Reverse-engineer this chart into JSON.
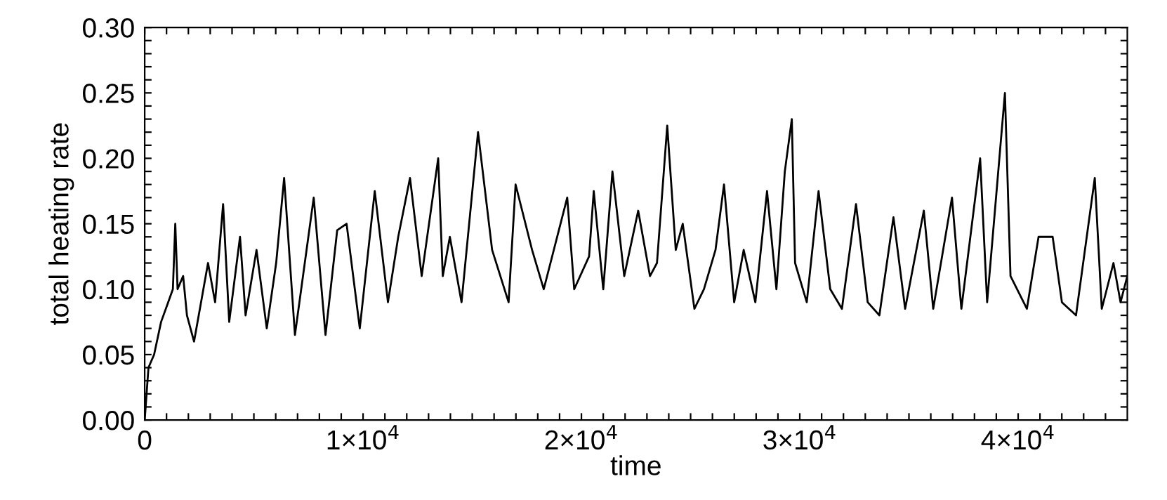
{
  "chart_data": {
    "type": "line",
    "xlabel": "time",
    "ylabel": "total heating rate",
    "series": [
      {
        "color": "#000000",
        "x": [
          0,
          172,
          430,
          750,
          1075,
          1290,
          1400,
          1505,
          1760,
          1935,
          2260,
          2580,
          2900,
          3225,
          3590,
          3870,
          4365,
          4620,
          5120,
          5590,
          6020,
          6385,
          6880,
          7740,
          8280,
          8815,
          9245,
          9850,
          10535,
          11140,
          11610,
          12150,
          12685,
          13440,
          13650,
          13975,
          14510,
          15265,
          15910,
          16665,
          16985,
          17740,
          18275,
          19350,
          19670,
          20350,
          20565,
          21000,
          21420,
          21960,
          22600,
          23140,
          23460,
          23930,
          24320,
          24640,
          25175,
          25610,
          26140,
          26530,
          26995,
          27430,
          27965,
          28500,
          28930,
          29315,
          29635,
          29785,
          30320,
          30860,
          31395,
          31930,
          32575,
          33110,
          33645,
          34290,
          34825,
          35680,
          36110,
          36970,
          37400,
          38260,
          38580,
          39395,
          39650,
          40400,
          40935,
          41580,
          42005,
          42650,
          43510,
          43830,
          44365,
          44690,
          45000
        ],
        "values": [
          0.0,
          0.04,
          0.05,
          0.075,
          0.09,
          0.1,
          0.15,
          0.1,
          0.11,
          0.08,
          0.06,
          0.09,
          0.12,
          0.09,
          0.165,
          0.075,
          0.14,
          0.08,
          0.13,
          0.07,
          0.12,
          0.185,
          0.065,
          0.17,
          0.065,
          0.145,
          0.15,
          0.07,
          0.175,
          0.09,
          0.14,
          0.185,
          0.11,
          0.2,
          0.11,
          0.14,
          0.09,
          0.22,
          0.13,
          0.09,
          0.18,
          0.13,
          0.1,
          0.17,
          0.1,
          0.125,
          0.175,
          0.1,
          0.19,
          0.11,
          0.16,
          0.11,
          0.12,
          0.225,
          0.13,
          0.15,
          0.085,
          0.1,
          0.13,
          0.18,
          0.09,
          0.13,
          0.09,
          0.175,
          0.1,
          0.19,
          0.23,
          0.12,
          0.09,
          0.175,
          0.1,
          0.085,
          0.165,
          0.09,
          0.08,
          0.155,
          0.085,
          0.16,
          0.085,
          0.17,
          0.085,
          0.2,
          0.09,
          0.25,
          0.11,
          0.085,
          0.14,
          0.14,
          0.09,
          0.08,
          0.185,
          0.085,
          0.12,
          0.09,
          0.11
        ]
      }
    ],
    "xlim": [
      0,
      45000
    ],
    "xticks": [
      {
        "value": 0,
        "label": "0"
      },
      {
        "value": 1000,
        "label": null
      },
      {
        "value": 2000,
        "label": null
      },
      {
        "value": 3000,
        "label": null
      },
      {
        "value": 4000,
        "label": null
      },
      {
        "value": 5000,
        "label": null
      },
      {
        "value": 6000,
        "label": null
      },
      {
        "value": 7000,
        "label": null
      },
      {
        "value": 8000,
        "label": null
      },
      {
        "value": 9000,
        "label": null
      },
      {
        "value": 10000,
        "label": "1×10$^{4}$"
      },
      {
        "value": 11000,
        "label": null
      },
      {
        "value": 12000,
        "label": null
      },
      {
        "value": 13000,
        "label": null
      },
      {
        "value": 14000,
        "label": null
      },
      {
        "value": 15000,
        "label": null
      },
      {
        "value": 16000,
        "label": null
      },
      {
        "value": 17000,
        "label": null
      },
      {
        "value": 18000,
        "label": null
      },
      {
        "value": 19000,
        "label": null
      },
      {
        "value": 20000,
        "label": "2×10$^{4}$"
      },
      {
        "value": 21000,
        "label": null
      },
      {
        "value": 22000,
        "label": null
      },
      {
        "value": 23000,
        "label": null
      },
      {
        "value": 24000,
        "label": null
      },
      {
        "value": 25000,
        "label": null
      },
      {
        "value": 26000,
        "label": null
      },
      {
        "value": 27000,
        "label": null
      },
      {
        "value": 28000,
        "label": null
      },
      {
        "value": 29000,
        "label": null
      },
      {
        "value": 30000,
        "label": "3×10$^{4}$"
      },
      {
        "value": 31000,
        "label": null
      },
      {
        "value": 32000,
        "label": null
      },
      {
        "value": 33000,
        "label": null
      },
      {
        "value": 34000,
        "label": null
      },
      {
        "value": 35000,
        "label": null
      },
      {
        "value": 36000,
        "label": null
      },
      {
        "value": 37000,
        "label": null
      },
      {
        "value": 38000,
        "label": null
      },
      {
        "value": 39000,
        "label": null
      },
      {
        "value": 40000,
        "label": "4×10$^{4}$"
      },
      {
        "value": 41000,
        "label": null
      },
      {
        "value": 42000,
        "label": null
      },
      {
        "value": 43000,
        "label": null
      },
      {
        "value": 44000,
        "label": null
      }
    ],
    "ylim": [
      0,
      0.3
    ],
    "yticks": [
      {
        "value": 0,
        "label": "0.00"
      },
      {
        "value": 0.01,
        "label": null
      },
      {
        "value": 0.02,
        "label": null
      },
      {
        "value": 0.03,
        "label": null
      },
      {
        "value": 0.04,
        "label": null
      },
      {
        "value": 0.05,
        "label": "0.05"
      },
      {
        "value": 0.06,
        "label": null
      },
      {
        "value": 0.07,
        "label": null
      },
      {
        "value": 0.08,
        "label": null
      },
      {
        "value": 0.09,
        "label": null
      },
      {
        "value": 0.1,
        "label": "0.10"
      },
      {
        "value": 0.11,
        "label": null
      },
      {
        "value": 0.12,
        "label": null
      },
      {
        "value": 0.13,
        "label": null
      },
      {
        "value": 0.14,
        "label": null
      },
      {
        "value": 0.15,
        "label": "0.15"
      },
      {
        "value": 0.16,
        "label": null
      },
      {
        "value": 0.17,
        "label": null
      },
      {
        "value": 0.18,
        "label": null
      },
      {
        "value": 0.19,
        "label": null
      },
      {
        "value": 0.2,
        "label": "0.20"
      },
      {
        "value": 0.21,
        "label": null
      },
      {
        "value": 0.22,
        "label": null
      },
      {
        "value": 0.23,
        "label": null
      },
      {
        "value": 0.24,
        "label": null
      },
      {
        "value": 0.25,
        "label": "0.25"
      },
      {
        "value": 0.26,
        "label": null
      },
      {
        "value": 0.27,
        "label": null
      },
      {
        "value": 0.28,
        "label": null
      },
      {
        "value": 0.29,
        "label": null
      },
      {
        "value": 0.3,
        "label": "0.30"
      }
    ],
    "grid": false,
    "legend": false,
    "marker": "none",
    "line_style": "solid"
  }
}
